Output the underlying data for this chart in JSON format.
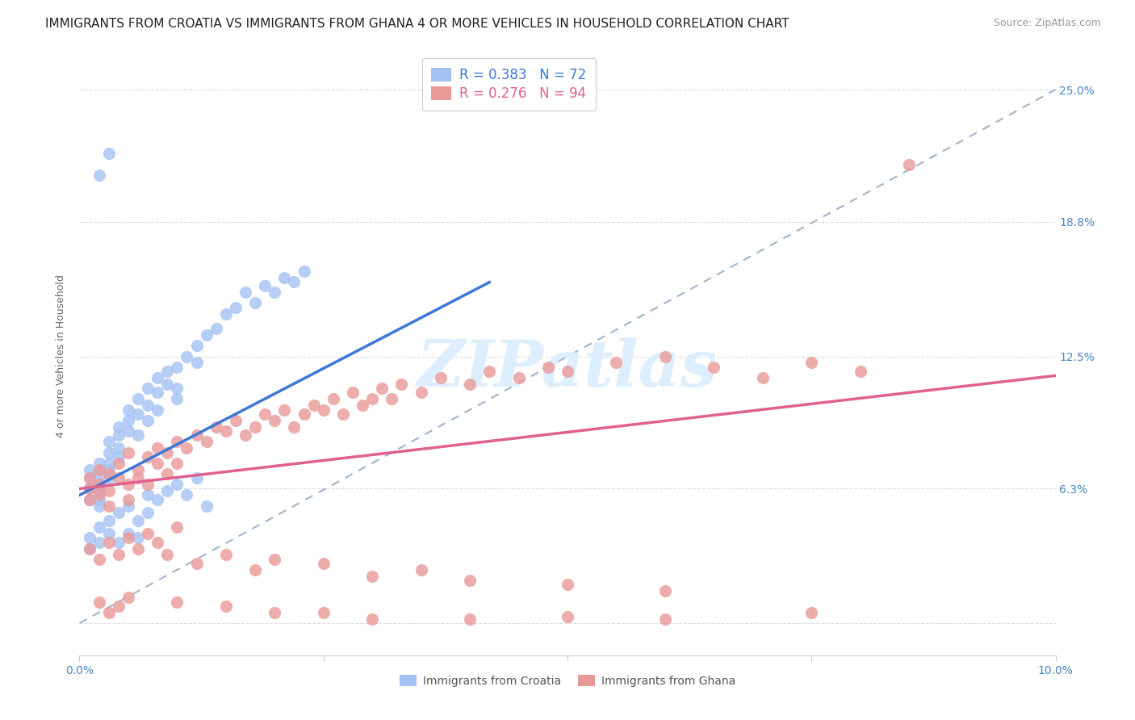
{
  "title": "IMMIGRANTS FROM CROATIA VS IMMIGRANTS FROM GHANA 4 OR MORE VEHICLES IN HOUSEHOLD CORRELATION CHART",
  "source": "Source: ZipAtlas.com",
  "ylabel": "4 or more Vehicles in Household",
  "xlim": [
    0.0,
    0.1
  ],
  "ylim": [
    -0.015,
    0.265
  ],
  "croatia_R": 0.383,
  "croatia_N": 72,
  "ghana_R": 0.276,
  "ghana_N": 94,
  "croatia_color": "#a4c2f4",
  "ghana_color": "#ea9999",
  "trend_croatia_color": "#3c78d8",
  "trend_ghana_color": "#e06090",
  "dashed_line_color": "#a0b4cc",
  "background_color": "#ffffff",
  "grid_color": "#dddddd",
  "title_fontsize": 11,
  "source_fontsize": 9,
  "axis_label_fontsize": 9,
  "tick_fontsize": 10,
  "legend_fontsize": 12,
  "watermark_color": "#ddeeff",
  "watermark_fontsize": 58,
  "scatter_alpha": 0.8,
  "scatter_size": 120,
  "ytick_positions": [
    0.0,
    0.063,
    0.125,
    0.188,
    0.25
  ],
  "ytick_labels": [
    "",
    "6.3%",
    "12.5%",
    "18.8%",
    "25.0%"
  ],
  "croatia_x": [
    0.001,
    0.001,
    0.001,
    0.001,
    0.002,
    0.002,
    0.002,
    0.002,
    0.002,
    0.002,
    0.003,
    0.003,
    0.003,
    0.003,
    0.003,
    0.004,
    0.004,
    0.004,
    0.004,
    0.005,
    0.005,
    0.005,
    0.006,
    0.006,
    0.006,
    0.007,
    0.007,
    0.007,
    0.008,
    0.008,
    0.008,
    0.009,
    0.009,
    0.01,
    0.01,
    0.01,
    0.011,
    0.012,
    0.012,
    0.013,
    0.014,
    0.015,
    0.016,
    0.017,
    0.018,
    0.019,
    0.02,
    0.021,
    0.022,
    0.023,
    0.001,
    0.001,
    0.002,
    0.002,
    0.003,
    0.003,
    0.004,
    0.004,
    0.005,
    0.005,
    0.006,
    0.006,
    0.007,
    0.007,
    0.008,
    0.009,
    0.01,
    0.011,
    0.012,
    0.013,
    0.003,
    0.002
  ],
  "croatia_y": [
    0.063,
    0.068,
    0.058,
    0.072,
    0.065,
    0.07,
    0.058,
    0.062,
    0.055,
    0.075,
    0.075,
    0.08,
    0.072,
    0.068,
    0.085,
    0.088,
    0.082,
    0.092,
    0.078,
    0.095,
    0.09,
    0.1,
    0.098,
    0.105,
    0.088,
    0.11,
    0.102,
    0.095,
    0.108,
    0.115,
    0.1,
    0.112,
    0.118,
    0.12,
    0.11,
    0.105,
    0.125,
    0.13,
    0.122,
    0.135,
    0.138,
    0.145,
    0.148,
    0.155,
    0.15,
    0.158,
    0.155,
    0.162,
    0.16,
    0.165,
    0.04,
    0.035,
    0.045,
    0.038,
    0.048,
    0.042,
    0.052,
    0.038,
    0.055,
    0.042,
    0.048,
    0.04,
    0.06,
    0.052,
    0.058,
    0.062,
    0.065,
    0.06,
    0.068,
    0.055,
    0.22,
    0.21
  ],
  "ghana_x": [
    0.001,
    0.001,
    0.001,
    0.002,
    0.002,
    0.002,
    0.003,
    0.003,
    0.003,
    0.004,
    0.004,
    0.005,
    0.005,
    0.005,
    0.006,
    0.006,
    0.007,
    0.007,
    0.008,
    0.008,
    0.009,
    0.009,
    0.01,
    0.01,
    0.011,
    0.012,
    0.013,
    0.014,
    0.015,
    0.016,
    0.017,
    0.018,
    0.019,
    0.02,
    0.021,
    0.022,
    0.023,
    0.024,
    0.025,
    0.026,
    0.027,
    0.028,
    0.029,
    0.03,
    0.031,
    0.032,
    0.033,
    0.035,
    0.037,
    0.04,
    0.042,
    0.045,
    0.048,
    0.05,
    0.055,
    0.06,
    0.065,
    0.07,
    0.075,
    0.08,
    0.001,
    0.002,
    0.003,
    0.004,
    0.005,
    0.006,
    0.007,
    0.008,
    0.009,
    0.01,
    0.012,
    0.015,
    0.018,
    0.02,
    0.025,
    0.03,
    0.035,
    0.04,
    0.05,
    0.06,
    0.002,
    0.003,
    0.004,
    0.005,
    0.01,
    0.015,
    0.02,
    0.025,
    0.03,
    0.04,
    0.05,
    0.06,
    0.075,
    0.085
  ],
  "ghana_y": [
    0.063,
    0.058,
    0.068,
    0.065,
    0.072,
    0.06,
    0.055,
    0.07,
    0.062,
    0.068,
    0.075,
    0.058,
    0.08,
    0.065,
    0.072,
    0.068,
    0.078,
    0.065,
    0.082,
    0.075,
    0.07,
    0.08,
    0.075,
    0.085,
    0.082,
    0.088,
    0.085,
    0.092,
    0.09,
    0.095,
    0.088,
    0.092,
    0.098,
    0.095,
    0.1,
    0.092,
    0.098,
    0.102,
    0.1,
    0.105,
    0.098,
    0.108,
    0.102,
    0.105,
    0.11,
    0.105,
    0.112,
    0.108,
    0.115,
    0.112,
    0.118,
    0.115,
    0.12,
    0.118,
    0.122,
    0.125,
    0.12,
    0.115,
    0.122,
    0.118,
    0.035,
    0.03,
    0.038,
    0.032,
    0.04,
    0.035,
    0.042,
    0.038,
    0.032,
    0.045,
    0.028,
    0.032,
    0.025,
    0.03,
    0.028,
    0.022,
    0.025,
    0.02,
    0.018,
    0.015,
    0.01,
    0.005,
    0.008,
    0.012,
    0.01,
    0.008,
    0.005,
    0.005,
    0.002,
    0.002,
    0.003,
    0.002,
    0.005,
    0.215
  ]
}
